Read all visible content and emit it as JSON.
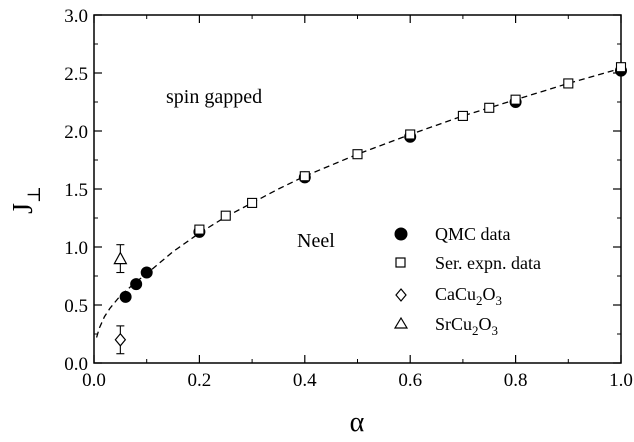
{
  "chart_data": {
    "type": "scatter",
    "xlabel": "α",
    "ylabel": {
      "main": "J",
      "sub": "⊥"
    },
    "xlim": [
      0,
      1
    ],
    "ylim": [
      0,
      3
    ],
    "x_ticks": [
      "0.0",
      "0.2",
      "0.4",
      "0.6",
      "0.8",
      "1.0"
    ],
    "y_ticks": [
      "0.0",
      "0.5",
      "1.0",
      "1.5",
      "2.0",
      "2.5",
      "3.0"
    ],
    "x_tick_values": [
      0,
      0.2,
      0.4,
      0.6,
      0.8,
      1.0
    ],
    "y_tick_values": [
      0,
      0.5,
      1.0,
      1.5,
      2.0,
      2.5,
      3.0
    ],
    "grid": false,
    "legend_placement": "bottom-right",
    "annotations": {
      "spin_gapped": "spin gapped",
      "neel": "Neel"
    },
    "series": [
      {
        "name": "QMC data",
        "marker": "filled-circle",
        "points": [
          [
            0.06,
            0.57
          ],
          [
            0.08,
            0.68
          ],
          [
            0.1,
            0.78
          ],
          [
            0.2,
            1.13
          ],
          [
            0.4,
            1.6
          ],
          [
            0.6,
            1.95
          ],
          [
            0.8,
            2.25
          ],
          [
            1.0,
            2.52
          ]
        ]
      },
      {
        "name": "Ser. expn. data",
        "marker": "open-square",
        "points": [
          [
            0.2,
            1.15
          ],
          [
            0.25,
            1.27
          ],
          [
            0.3,
            1.38
          ],
          [
            0.4,
            1.61
          ],
          [
            0.5,
            1.8
          ],
          [
            0.6,
            1.97
          ],
          [
            0.7,
            2.13
          ],
          [
            0.75,
            2.2
          ],
          [
            0.8,
            2.27
          ],
          [
            0.9,
            2.41
          ],
          [
            1.0,
            2.55
          ]
        ]
      },
      {
        "name": {
          "base": "CaCu",
          "sub1": "2",
          "mid": "O",
          "sub2": "3"
        },
        "marker": "open-diamond",
        "points": [
          [
            0.05,
            0.2
          ]
        ],
        "errors": [
          0.12
        ]
      },
      {
        "name": {
          "base": "SrCu",
          "sub1": "2",
          "mid": "O",
          "sub2": "3"
        },
        "marker": "open-triangle",
        "points": [
          [
            0.05,
            0.9
          ]
        ],
        "errors": [
          0.12
        ]
      }
    ],
    "fit_curve": {
      "style": "dashed",
      "x": [
        0.005,
        0.01,
        0.02,
        0.03,
        0.05,
        0.08,
        0.1,
        0.15,
        0.2,
        0.25,
        0.3,
        0.35,
        0.4,
        0.5,
        0.6,
        0.7,
        0.8,
        0.9,
        1.0
      ],
      "y": [
        0.22,
        0.3,
        0.4,
        0.47,
        0.58,
        0.7,
        0.77,
        0.96,
        1.12,
        1.26,
        1.38,
        1.5,
        1.61,
        1.8,
        1.97,
        2.13,
        2.27,
        2.41,
        2.54
      ]
    }
  }
}
